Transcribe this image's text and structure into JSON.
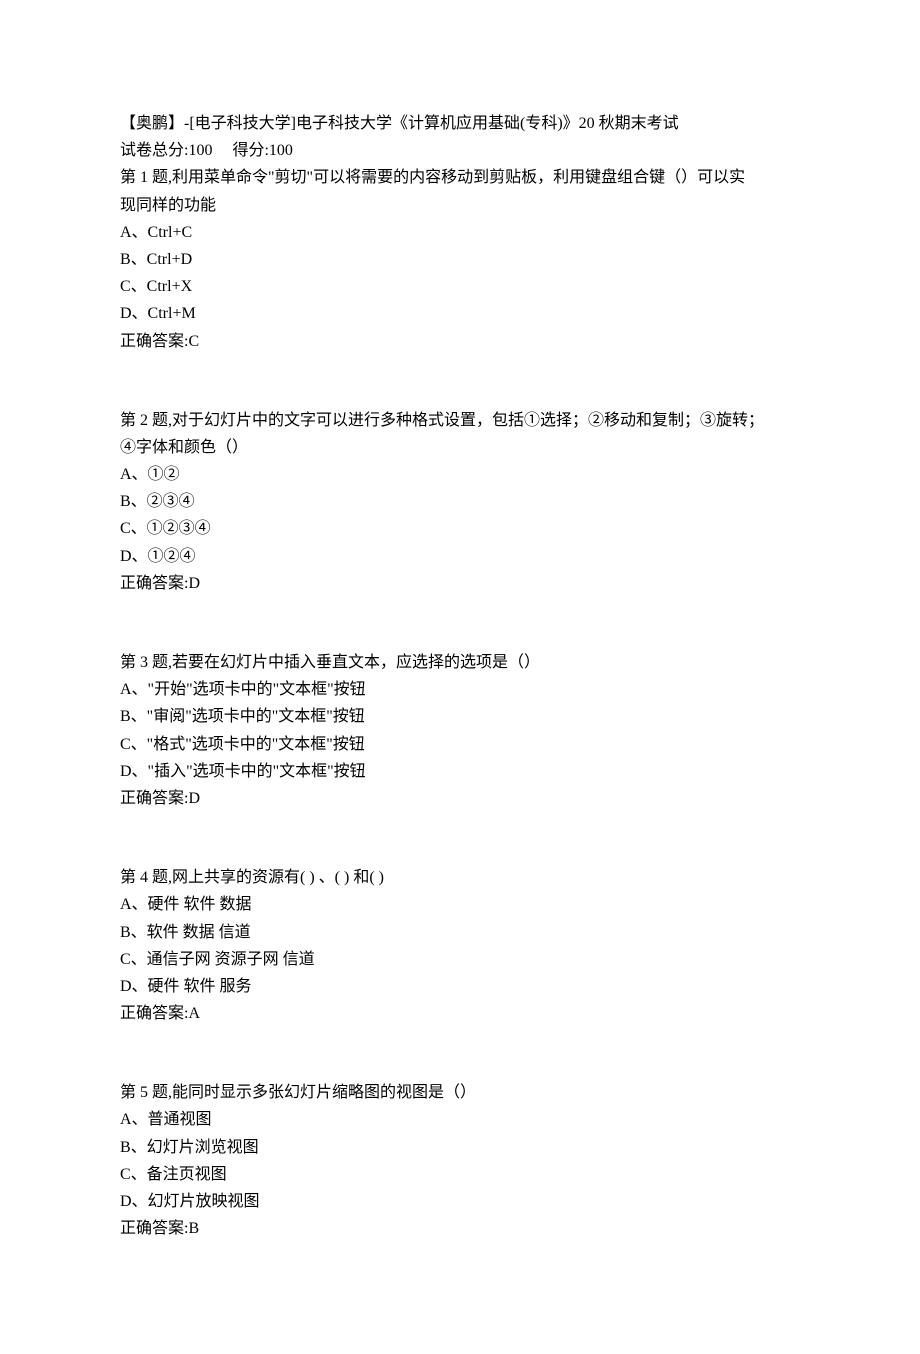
{
  "header": {
    "title": "【奥鹏】-[电子科技大学]电子科技大学《计算机应用基础(专科)》20 秋期末考试",
    "score_line": "试卷总分:100     得分:100"
  },
  "questions": [
    {
      "prompt_lines": [
        "第 1 题,利用菜单命令\"剪切\"可以将需要的内容移动到剪贴板，利用键盘组合键（）可以实",
        "现同样的功能"
      ],
      "options": [
        "A、Ctrl+C",
        "B、Ctrl+D",
        "C、Ctrl+X",
        "D、Ctrl+M"
      ],
      "answer": "正确答案:C"
    },
    {
      "prompt_lines": [
        "第 2 题,对于幻灯片中的文字可以进行多种格式设置，包括①选择；②移动和复制；③旋转；",
        "④字体和颜色（）"
      ],
      "options": [
        "A、①②",
        "B、②③④",
        "C、①②③④",
        "D、①②④"
      ],
      "answer": "正确答案:D"
    },
    {
      "prompt_lines": [
        "第 3 题,若要在幻灯片中插入垂直文本，应选择的选项是（）"
      ],
      "options": [
        "A、\"开始\"选项卡中的\"文本框\"按钮",
        "B、\"审阅\"选项卡中的\"文本框\"按钮",
        "C、\"格式\"选项卡中的\"文本框\"按钮",
        "D、\"插入\"选项卡中的\"文本框\"按钮"
      ],
      "answer": "正确答案:D"
    },
    {
      "prompt_lines": [
        "第 4 题,网上共享的资源有(  ) 、(  ) 和(  )"
      ],
      "options": [
        "A、硬件 软件 数据",
        "B、软件 数据 信道",
        "C、通信子网 资源子网 信道",
        "D、硬件  软件  服务"
      ],
      "answer": "正确答案:A"
    },
    {
      "prompt_lines": [
        "第 5 题,能同时显示多张幻灯片缩略图的视图是（）"
      ],
      "options": [
        "A、普通视图",
        "B、幻灯片浏览视图",
        "C、备注页视图",
        "D、幻灯片放映视图"
      ],
      "answer": "正确答案:B"
    }
  ]
}
